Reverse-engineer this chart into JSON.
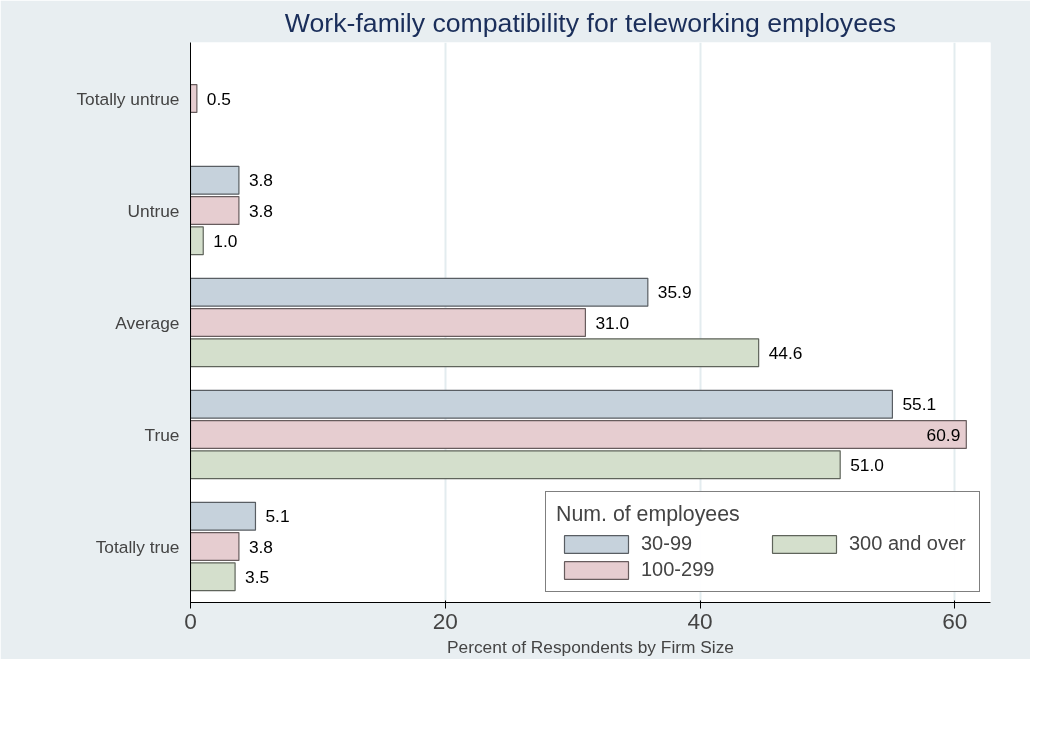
{
  "chart_data": {
    "type": "bar",
    "orientation": "horizontal",
    "title": "Work-family compatibility for teleworking employees",
    "xlabel": "Percent of Respondents by Firm Size",
    "categories": [
      "Totally untrue",
      "Untrue",
      "Average",
      "True",
      "Totally true"
    ],
    "series": [
      {
        "name": "30-99",
        "color": "#c6d2dc",
        "values": [
          null,
          3.8,
          35.9,
          55.1,
          5.1
        ],
        "value_labels": [
          null,
          "3.8",
          "35.9",
          "55.1",
          "5.1"
        ]
      },
      {
        "name": "100-299",
        "color": "#e6cdd0",
        "values": [
          0.5,
          3.8,
          31.0,
          60.9,
          3.8
        ],
        "value_labels": [
          "0.5",
          "3.8",
          "31.0",
          "60.9",
          "3.8"
        ]
      },
      {
        "name": "300 and over",
        "color": "#d4dfcc",
        "values": [
          null,
          1.0,
          44.6,
          51.0,
          3.5
        ],
        "value_labels": [
          null,
          "1.0",
          "44.6",
          "51.0",
          "3.5"
        ]
      }
    ],
    "xlim": [
      0,
      62.8
    ],
    "xticks": [
      0,
      20,
      40,
      60
    ],
    "grid": "x",
    "legend": "bottom right",
    "legend_title": "Num. of employees"
  }
}
